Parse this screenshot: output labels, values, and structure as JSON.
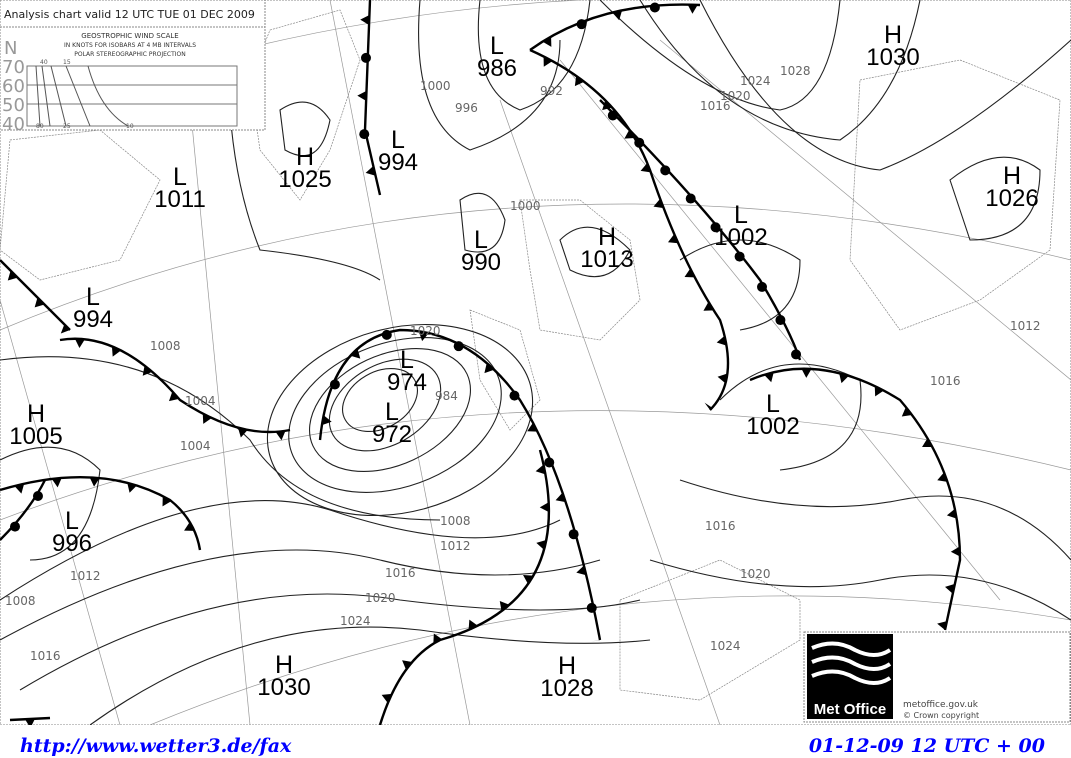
{
  "header": {
    "title": "Analysis chart valid 12 UTC TUE 01 DEC 2009"
  },
  "wind_scale": {
    "line1": "GEOSTROPHIC WIND SCALE",
    "line2": "IN KNOTS FOR ISOBARS AT  4 MB INTERVALS",
    "line3": "POLAR STEREOGRAPHIC PROJECTION",
    "lat_label": "N",
    "lats": [
      "70",
      "60",
      "50",
      "40"
    ],
    "top_ticks": [
      "40",
      "15"
    ],
    "bottom_ticks": [
      "80",
      "25",
      "10"
    ]
  },
  "centers": [
    {
      "type": "H",
      "value": "1030"
    },
    {
      "type": "L",
      "value": "986"
    },
    {
      "type": "L",
      "value": "994"
    },
    {
      "type": "H",
      "value": "1025"
    },
    {
      "type": "L",
      "value": "1011"
    },
    {
      "type": "H",
      "value": "1026"
    },
    {
      "type": "L",
      "value": "990"
    },
    {
      "type": "H",
      "value": "1013"
    },
    {
      "type": "L",
      "value": "1002"
    },
    {
      "type": "L",
      "value": "994"
    },
    {
      "type": "L",
      "value": "974"
    },
    {
      "type": "L",
      "value": "972"
    },
    {
      "type": "H",
      "value": "1005"
    },
    {
      "type": "L",
      "value": "1002"
    },
    {
      "type": "L",
      "value": "996"
    },
    {
      "type": "H",
      "value": "1030"
    },
    {
      "type": "H",
      "value": "1028"
    }
  ],
  "isobar_labels": [
    "1016",
    "1012",
    "1008",
    "1004",
    "1000",
    "996",
    "992",
    "1000",
    "1028",
    "1024",
    "1020",
    "1016",
    "1008",
    "1004",
    "1008",
    "1012",
    "1016",
    "1020",
    "1024",
    "1016",
    "1020",
    "1024",
    "1012",
    "1016",
    "1020",
    "984"
  ],
  "logo": {
    "text": "Met Office",
    "site": "metoffice.gov.uk",
    "copyright": "©  Crown copyright"
  },
  "footer": {
    "url": "http://www.wetter3.de/fax",
    "time": "01-12-09 12 UTC + 00"
  }
}
